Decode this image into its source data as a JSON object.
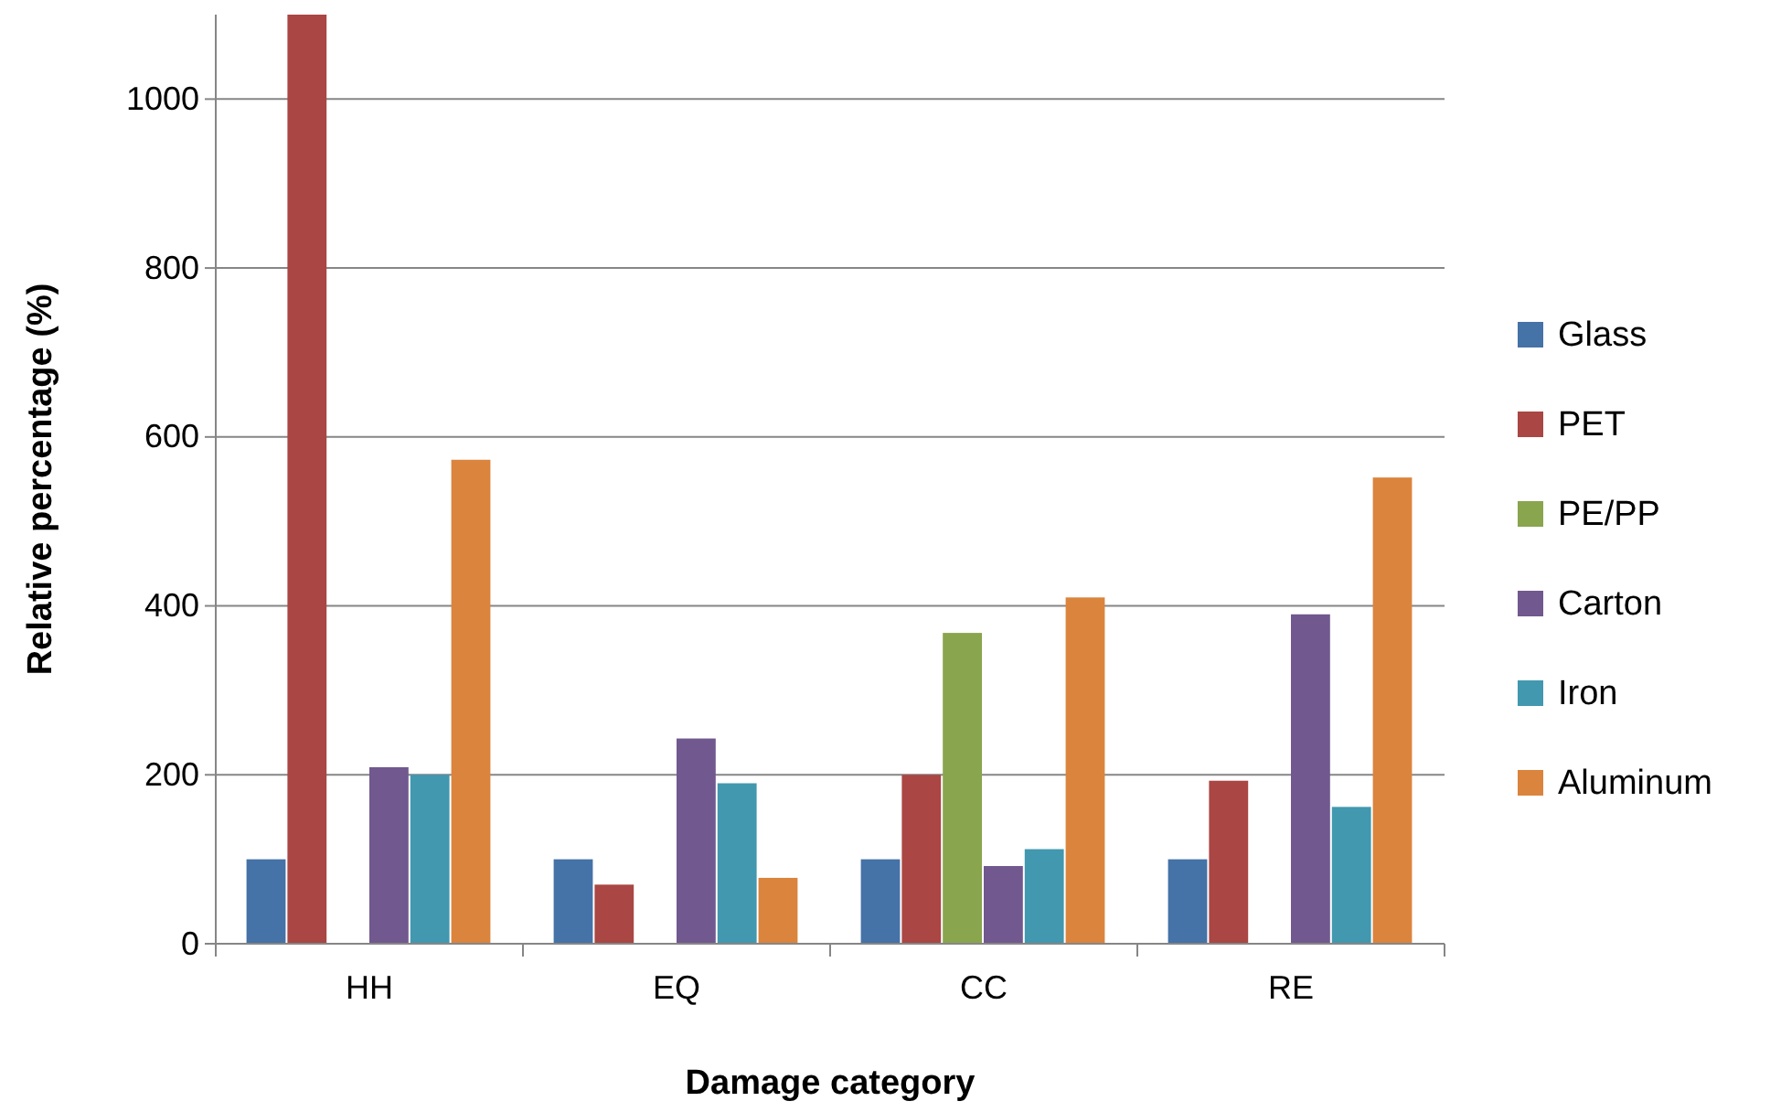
{
  "chart_data": {
    "type": "bar",
    "xlabel": "Damage category",
    "ylabel": "Relative percentage (%)",
    "categories": [
      "HH",
      "EQ",
      "CC",
      "RE"
    ],
    "series": [
      {
        "name": "Glass",
        "color": "#4572a7",
        "values": [
          100,
          100,
          100,
          100
        ]
      },
      {
        "name": "PET",
        "color": "#aa4643",
        "values": [
          1100,
          70,
          200,
          193
        ]
      },
      {
        "name": "PE/PP",
        "color": "#89a54e",
        "values": [
          null,
          null,
          368,
          null
        ]
      },
      {
        "name": "Carton",
        "color": "#71588f",
        "values": [
          209,
          243,
          92,
          390
        ]
      },
      {
        "name": "Iron",
        "color": "#4198af",
        "values": [
          200,
          190,
          112,
          162
        ]
      },
      {
        "name": "Aluminum",
        "color": "#db843d",
        "values": [
          573,
          78,
          410,
          552
        ]
      }
    ],
    "ylim": [
      0,
      1100
    ],
    "yticks": [
      0,
      200,
      400,
      600,
      800,
      1000
    ],
    "grid": "y",
    "legend": "right"
  }
}
